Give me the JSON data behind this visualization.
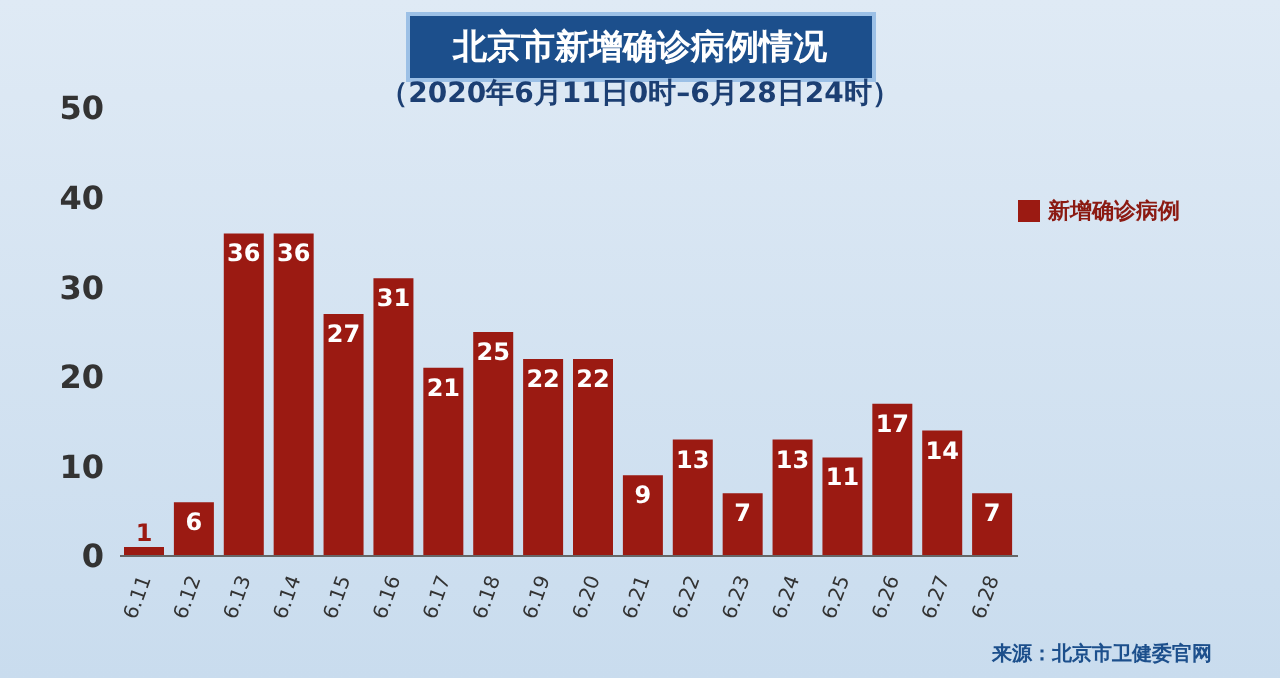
{
  "chart_data": {
    "type": "bar",
    "title": "北京市新增确诊病例情况",
    "subtitle": "（2020年6月11日0时–6月28日24时）",
    "categories": [
      "6.11",
      "6.12",
      "6.13",
      "6.14",
      "6.15",
      "6.16",
      "6.17",
      "6.18",
      "6.19",
      "6.20",
      "6.21",
      "6.22",
      "6.23",
      "6.24",
      "6.25",
      "6.26",
      "6.27",
      "6.28"
    ],
    "series": [
      {
        "name": "新增确诊病例",
        "color": "#9b1a12",
        "values": [
          1,
          6,
          36,
          36,
          27,
          31,
          21,
          25,
          22,
          22,
          9,
          13,
          7,
          13,
          11,
          17,
          14,
          7
        ]
      }
    ],
    "ylim": [
      0,
      50
    ],
    "yticks": [
      0,
      10,
      20,
      30,
      40,
      50
    ],
    "grid": false,
    "legend": "top right",
    "data_labels": true,
    "annotations": [
      "来源：北京市卫健委官网"
    ]
  }
}
